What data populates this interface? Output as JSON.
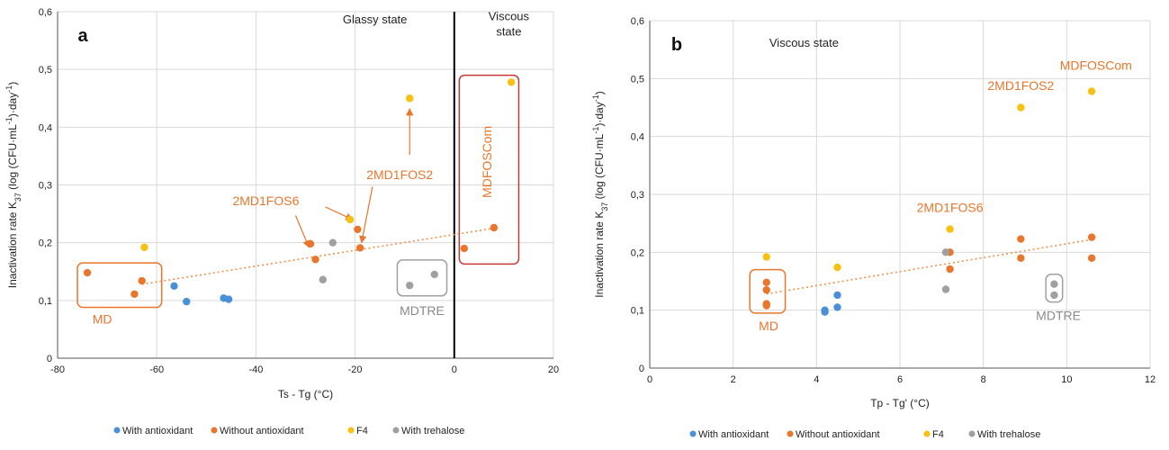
{
  "colors": {
    "With antioxidant": "#4a90d9",
    "Without antioxidant": "#e8762c",
    "F4": "#f8c010",
    "With trehalose": "#a0a0a0",
    "trend": "#f0904a",
    "orange_text": "#e8762c",
    "gray_text": "#8a8a8a",
    "red_box": "#c83838",
    "grid": "#d9d9d9"
  },
  "legend": [
    "With antioxidant",
    "Without antioxidant",
    "F4",
    "With trehalose"
  ],
  "chart_data": [
    {
      "id": "a",
      "type": "scatter",
      "panel_label": "a",
      "xlabel": "Ts - Tg (°C)",
      "ylabel": "Inactivation rate K37 (log (CFU·mL⁻¹)·day⁻¹)",
      "ylabel_parts": [
        "Inactivation rate K",
        "37",
        " (log (CFU·mL",
        "-1",
        ")·day",
        "-1",
        ")"
      ],
      "xlim": [
        -80,
        20
      ],
      "ylim": [
        0,
        0.6
      ],
      "xticks": [
        -80,
        -60,
        -40,
        -20,
        0,
        20
      ],
      "xtick_labels": [
        "-80",
        "-60",
        "-40",
        "-20",
        "0",
        "20"
      ],
      "yticks": [
        0,
        0.1,
        0.2,
        0.3,
        0.4,
        0.5,
        0.6
      ],
      "ytick_labels": [
        "0",
        "0,1",
        "0,2",
        "0,3",
        "0,4",
        "0,5",
        "0,6"
      ],
      "vertical_line_x": 0,
      "region_labels": [
        {
          "lines": [
            "Glassy state"
          ],
          "x": -16,
          "y": 0.58
        },
        {
          "lines": [
            "Viscous",
            "state"
          ],
          "x": 11,
          "y": 0.585
        }
      ],
      "trend": [
        [
          -63,
          0.128
        ],
        [
          8,
          0.225
        ]
      ],
      "series": [
        {
          "name": "With antioxidant",
          "points": [
            [
              -56.5,
              0.125
            ],
            [
              -54,
              0.098
            ],
            [
              -46.5,
              0.104
            ],
            [
              -45.5,
              0.102
            ]
          ]
        },
        {
          "name": "Without antioxidant",
          "points": [
            [
              -74,
              0.148
            ],
            [
              -63,
              0.134
            ],
            [
              -64.5,
              0.111
            ],
            [
              -29,
              0.198
            ],
            [
              -28,
              0.171
            ],
            [
              -19.5,
              0.223
            ],
            [
              -19,
              0.191
            ],
            [
              2,
              0.19
            ],
            [
              8,
              0.226
            ]
          ]
        },
        {
          "name": "F4",
          "points": [
            [
              -62.5,
              0.192
            ],
            [
              -21,
              0.24
            ],
            [
              -9,
              0.45
            ],
            [
              11.5,
              0.478
            ]
          ]
        },
        {
          "name": "With trehalose",
          "points": [
            [
              -24.5,
              0.2
            ],
            [
              -26.5,
              0.136
            ],
            [
              -9,
              0.126
            ],
            [
              -4,
              0.145
            ]
          ]
        }
      ],
      "group_labels": [
        {
          "text": "MD",
          "color": "orange_text",
          "x": -71,
          "y": 0.06,
          "rotate": false
        },
        {
          "text": "MDTRE",
          "color": "gray_text",
          "x": -6.5,
          "y": 0.075,
          "rotate": false
        },
        {
          "text": "2MD1FOS6",
          "color": "orange_text",
          "x": -38,
          "y": 0.265,
          "rotate": false
        },
        {
          "text": "2MD1FOS2",
          "color": "orange_text",
          "x": -11,
          "y": 0.31,
          "rotate": false
        },
        {
          "text": "MDFOSCom",
          "color": "orange_text",
          "x": 7.5,
          "y": 0.34,
          "rotate": true
        }
      ],
      "boxes": [
        {
          "color": "Without antioxidant",
          "x0": -76,
          "x1": -59,
          "y0": 0.088,
          "y1": 0.165
        },
        {
          "color": "With trehalose",
          "x0": -11.5,
          "x1": -1.5,
          "y0": 0.108,
          "y1": 0.17
        },
        {
          "color": "red_box",
          "x0": 1,
          "x1": 13,
          "y0": 0.163,
          "y1": 0.49
        }
      ],
      "arrows": [
        {
          "from": [
            -26,
            0.262
          ],
          "to": [
            -20.5,
            0.24
          ]
        },
        {
          "from": [
            -32,
            0.247
          ],
          "to": [
            -29.3,
            0.192
          ]
        },
        {
          "from": [
            -16.5,
            0.297
          ],
          "to": [
            -18.7,
            0.2
          ]
        },
        {
          "from": [
            -9,
            0.352
          ],
          "to": [
            -9,
            0.432
          ]
        }
      ]
    },
    {
      "id": "b",
      "type": "scatter",
      "panel_label": "b",
      "xlabel": "Tp - Tg' (°C)",
      "ylabel": "Inactivation rate K37 (log (CFU·mL⁻¹)·day⁻¹)",
      "ylabel_parts": [
        "Inactivation rate K",
        "37",
        " (log (CFU·mL",
        "-1",
        ")·day",
        "-1",
        ")"
      ],
      "xlim": [
        0,
        12
      ],
      "ylim": [
        0,
        0.6
      ],
      "xticks": [
        0,
        2,
        4,
        6,
        8,
        10,
        12
      ],
      "xtick_labels": [
        "0",
        "2",
        "4",
        "6",
        "8",
        "10",
        "12"
      ],
      "yticks": [
        0,
        0.1,
        0.2,
        0.3,
        0.4,
        0.5,
        0.6
      ],
      "ytick_labels": [
        "0",
        "0,1",
        "0,2",
        "0,3",
        "0,4",
        "0,5",
        "0,6"
      ],
      "vertical_line_x": null,
      "region_labels": [
        {
          "lines": [
            "Viscous state"
          ],
          "x": 3.7,
          "y": 0.555
        }
      ],
      "trend": [
        [
          2.8,
          0.128
        ],
        [
          10.6,
          0.222
        ]
      ],
      "series": [
        {
          "name": "With antioxidant",
          "points": [
            [
              4.2,
              0.1
            ],
            [
              4.2,
              0.097
            ],
            [
              4.5,
              0.105
            ],
            [
              4.5,
              0.126
            ]
          ]
        },
        {
          "name": "Without antioxidant",
          "points": [
            [
              2.8,
              0.148
            ],
            [
              2.8,
              0.135
            ],
            [
              2.8,
              0.111
            ],
            [
              2.8,
              0.108
            ],
            [
              7.2,
              0.2
            ],
            [
              7.2,
              0.171
            ],
            [
              8.9,
              0.223
            ],
            [
              8.9,
              0.19
            ],
            [
              10.6,
              0.226
            ],
            [
              10.6,
              0.19
            ]
          ]
        },
        {
          "name": "F4",
          "points": [
            [
              2.8,
              0.192
            ],
            [
              4.5,
              0.174
            ],
            [
              7.2,
              0.24
            ],
            [
              8.9,
              0.45
            ],
            [
              10.6,
              0.478
            ]
          ]
        },
        {
          "name": "With trehalose",
          "points": [
            [
              7.1,
              0.2
            ],
            [
              7.1,
              0.136
            ],
            [
              9.7,
              0.145
            ],
            [
              9.7,
              0.126
            ]
          ]
        }
      ],
      "group_labels": [
        {
          "text": "MD",
          "color": "orange_text",
          "x": 2.85,
          "y": 0.065,
          "rotate": false
        },
        {
          "text": "MDTRE",
          "color": "gray_text",
          "x": 9.8,
          "y": 0.083,
          "rotate": false
        },
        {
          "text": "2MD1FOS6",
          "color": "orange_text",
          "x": 7.2,
          "y": 0.27,
          "rotate": false
        },
        {
          "text": "2MD1FOS2",
          "color": "orange_text",
          "x": 8.9,
          "y": 0.48,
          "rotate": false
        },
        {
          "text": "MDFOSCom",
          "color": "orange_text",
          "x": 10.7,
          "y": 0.515,
          "rotate": false
        }
      ],
      "boxes": [
        {
          "color": "Without antioxidant",
          "x0": 2.4,
          "x1": 3.25,
          "y0": 0.095,
          "y1": 0.17
        },
        {
          "color": "With trehalose",
          "x0": 9.5,
          "x1": 9.9,
          "y0": 0.114,
          "y1": 0.162
        }
      ],
      "arrows": []
    }
  ]
}
